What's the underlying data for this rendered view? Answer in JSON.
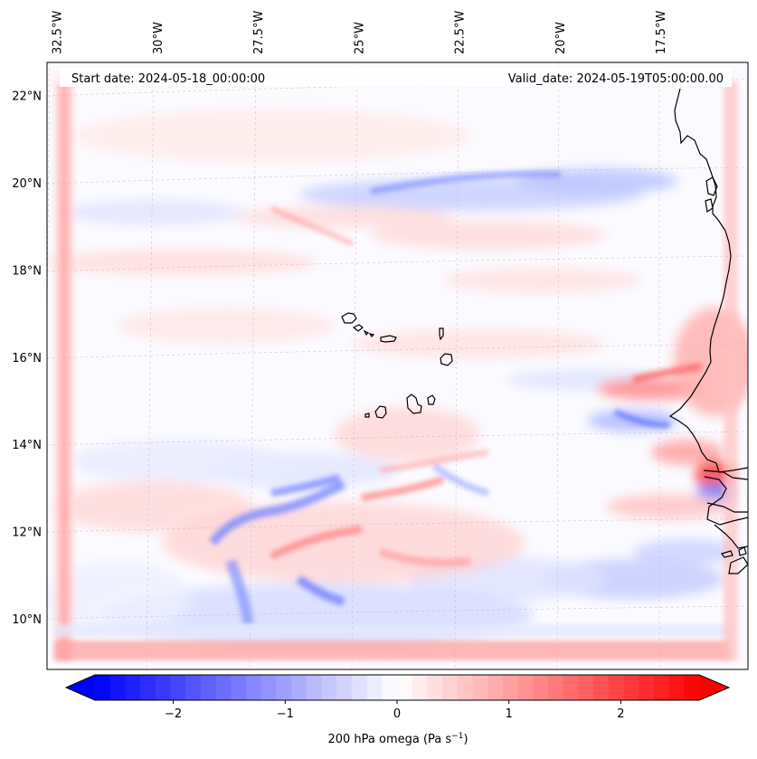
{
  "map": {
    "title": "200 hPa omega map",
    "start_date_label": "Start date: 2024-05-18_00:00:00",
    "valid_date_label": "Valid_date: 2024-05-19T05:00:00.00",
    "lon_ticks": [
      {
        "label": "32.5°W",
        "lon": -32.5
      },
      {
        "label": "30°W",
        "lon": -30.0
      },
      {
        "label": "27.5°W",
        "lon": -27.5
      },
      {
        "label": "25°W",
        "lon": -25.0
      },
      {
        "label": "22.5°W",
        "lon": -22.5
      },
      {
        "label": "20°W",
        "lon": -20.0
      },
      {
        "label": "17.5°W",
        "lon": -17.5
      }
    ],
    "lat_ticks": [
      {
        "label": "22°N",
        "lat": 22
      },
      {
        "label": "20°N",
        "lat": 20
      },
      {
        "label": "18°N",
        "lat": 18
      },
      {
        "label": "16°N",
        "lat": 16
      },
      {
        "label": "14°N",
        "lat": 14
      },
      {
        "label": "12°N",
        "lat": 12
      },
      {
        "label": "10°N",
        "lat": 10
      }
    ],
    "features": {
      "coastline": "West African coastline (Senegal, Gambia, Guinea-Bissau)",
      "islands": "Cape Verde Islands",
      "descent_band": "Red ridge along the African coast",
      "ascent_bands": [
        "Blue band near 20°N",
        "Blue streaks south of 13°N"
      ]
    }
  },
  "colorbar": {
    "label_prefix": "200 hPa omega (Pa s",
    "label_exp": "−1",
    "label_suffix": ")",
    "vmin": -2.7,
    "vmax": 2.7,
    "low_color": "#0000ff",
    "mid_color": "#ffffff",
    "high_color": "#ff0000",
    "ticks": [
      {
        "label": "−2",
        "value": -2
      },
      {
        "label": "−1",
        "value": -1
      },
      {
        "label": "0",
        "value": 0
      },
      {
        "label": "1",
        "value": 1
      },
      {
        "label": "2",
        "value": 2
      }
    ]
  }
}
